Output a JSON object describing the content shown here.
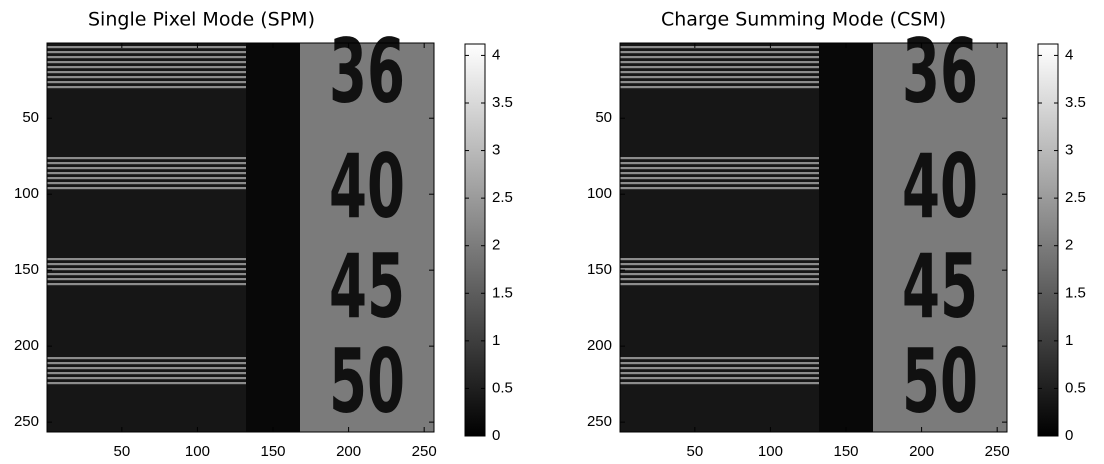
{
  "chart_data": [
    {
      "type": "image",
      "title": "Single Pixel Mode (SPM)",
      "xlim": [
        0.5,
        256.5
      ],
      "ylim": [
        256.5,
        0.5
      ],
      "xticks": [
        50,
        100,
        150,
        200,
        250
      ],
      "yticks": [
        50,
        100,
        150,
        200,
        250
      ],
      "clim": [
        0,
        4.12
      ],
      "cticks": [
        0,
        0.5,
        1,
        1.5,
        2,
        2.5,
        3,
        3.5,
        4
      ],
      "colormap": [
        "#000000",
        "#ffffff"
      ],
      "annotations": [
        "36",
        "40",
        "45",
        "50"
      ]
    },
    {
      "type": "image",
      "title": "Charge Summing Mode (CSM)",
      "xlim": [
        0.5,
        256.5
      ],
      "ylim": [
        256.5,
        0.5
      ],
      "xticks": [
        50,
        100,
        150,
        200,
        250
      ],
      "yticks": [
        50,
        100,
        150,
        200,
        250
      ],
      "clim": [
        0,
        4.12
      ],
      "cticks": [
        0,
        0.5,
        1,
        1.5,
        2,
        2.5,
        3,
        3.5,
        4
      ],
      "colormap": [
        "#000000",
        "#ffffff"
      ],
      "annotations": [
        "36",
        "40",
        "45",
        "50"
      ]
    }
  ]
}
